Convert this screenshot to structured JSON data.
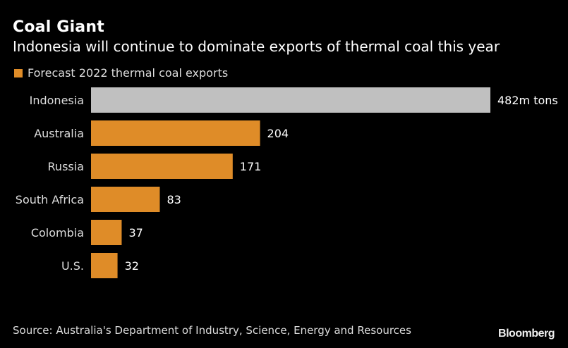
{
  "chart_data": {
    "type": "bar",
    "orientation": "horizontal",
    "title": "Coal Giant",
    "subtitle": "Indonesia will continue to dominate exports of thermal coal this year",
    "legend": [
      {
        "label": "Forecast 2022 thermal coal exports",
        "color": "#df8c28"
      }
    ],
    "legend_placement": "top-left",
    "categories": [
      "Indonesia",
      "Australia",
      "Russia",
      "South Africa",
      "Colombia",
      "U.S."
    ],
    "values": [
      482,
      204,
      171,
      83,
      37,
      32
    ],
    "value_labels": [
      "482m tons",
      "204",
      "171",
      "83",
      "37",
      "32"
    ],
    "unit": "million tons",
    "bar_colors": [
      "#c0c0c0",
      "#df8c28",
      "#df8c28",
      "#df8c28",
      "#df8c28",
      "#df8c28"
    ],
    "xlim": [
      0,
      482
    ],
    "grid": false,
    "xlabel": "",
    "ylabel": ""
  },
  "source": "Source: Australia's Department of Industry, Science, Energy and Resources",
  "brand": "Bloomberg"
}
